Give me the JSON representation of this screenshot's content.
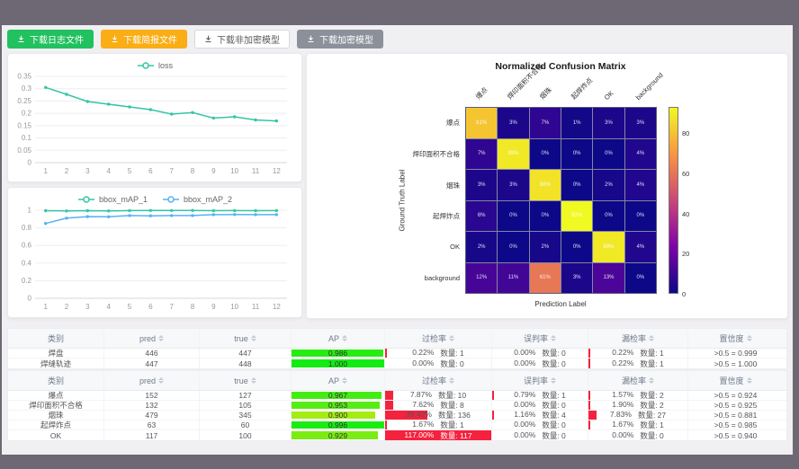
{
  "frame": {
    "chrome_color": "#6e6874",
    "page_bg": "#f0eff2",
    "accent_red": "#f5223d"
  },
  "toolbar": {
    "buttons": [
      {
        "name": "download-log-file-button",
        "label": "下载日志文件",
        "variant": "green",
        "icon": "download-icon"
      },
      {
        "name": "download-report-file-button",
        "label": "下载简报文件",
        "variant": "orange",
        "icon": "download-icon"
      },
      {
        "name": "download-unencrypted-model-button",
        "label": "下载非加密模型",
        "variant": "plain",
        "icon": "download-icon"
      },
      {
        "name": "download-encrypted-model-button",
        "label": "下载加密模型",
        "variant": "gray",
        "icon": "download-icon"
      }
    ]
  },
  "chart_data": [
    {
      "type": "line",
      "title": "",
      "x": [
        "1",
        "2",
        "3",
        "4",
        "5",
        "6",
        "7",
        "8",
        "9",
        "10",
        "11",
        "12"
      ],
      "series": [
        {
          "name": "loss",
          "color": "#34c5a5",
          "values": [
            0.305,
            0.277,
            0.248,
            0.237,
            0.226,
            0.215,
            0.197,
            0.203,
            0.181,
            0.186,
            0.173,
            0.169
          ]
        }
      ],
      "yticks": [
        0,
        0.05,
        0.1,
        0.15,
        0.2,
        0.25,
        0.3,
        0.35
      ],
      "ylim": [
        0,
        0.35
      ],
      "legend_position": "top",
      "grid": true
    },
    {
      "type": "line",
      "title": "",
      "x": [
        "1",
        "2",
        "3",
        "4",
        "5",
        "6",
        "7",
        "8",
        "9",
        "10",
        "11",
        "12"
      ],
      "series": [
        {
          "name": "bbox_mAP_1",
          "color": "#34c5a5",
          "values": [
            0.995,
            0.992,
            0.995,
            0.992,
            0.996,
            0.997,
            0.997,
            0.998,
            0.995,
            0.996,
            0.995,
            0.996
          ]
        },
        {
          "name": "bbox_mAP_2",
          "color": "#5ab1ef",
          "values": [
            0.85,
            0.91,
            0.928,
            0.925,
            0.94,
            0.937,
            0.94,
            0.94,
            0.95,
            0.951,
            0.95,
            0.95
          ]
        }
      ],
      "yticks": [
        0,
        0.2,
        0.4,
        0.6,
        0.8,
        1
      ],
      "ylim": [
        0,
        1
      ],
      "legend_position": "top",
      "grid": true
    },
    {
      "type": "heatmap",
      "title": "Normalized Confusion Matrix",
      "xlabel": "Prediction Label",
      "ylabel": "Ground Truth Label",
      "labels": [
        "爆点",
        "焊印面积不合格",
        "烟珠",
        "起焊炸点",
        "OK",
        "background"
      ],
      "matrix": [
        [
          81,
          3,
          7,
          1,
          3,
          3
        ],
        [
          7,
          89,
          0,
          0,
          0,
          4
        ],
        [
          3,
          3,
          88,
          0,
          2,
          4
        ],
        [
          6,
          0,
          0,
          93,
          0,
          0
        ],
        [
          2,
          0,
          2,
          0,
          89,
          4
        ],
        [
          12,
          11,
          61,
          3,
          13,
          0
        ]
      ],
      "vmax": 93,
      "colorbar_ticks": [
        0,
        20,
        40,
        60,
        80
      ],
      "colormap": "plasma"
    }
  ],
  "table_headers": [
    {
      "label": "类别",
      "sortable": false
    },
    {
      "label": "pred",
      "sortable": true
    },
    {
      "label": "true",
      "sortable": true
    },
    {
      "label": "AP",
      "sortable": true
    },
    {
      "label": "过检率",
      "sortable": true
    },
    {
      "label": "误判率",
      "sortable": true
    },
    {
      "label": "漏检率",
      "sortable": true
    },
    {
      "label": "置信度",
      "sortable": true
    }
  ],
  "tables": [
    {
      "rows": [
        {
          "label": "焊盘",
          "pred": "446",
          "true": "447",
          "ap": "0.986",
          "ap_val": 0.986,
          "over": {
            "pct": "0.22%",
            "count": "数量: 1",
            "bar": 0.22
          },
          "mis": {
            "pct": "0.00%",
            "count": "数量: 0",
            "bar": 0
          },
          "miss": {
            "pct": "0.22%",
            "count": "数量: 1",
            "bar": 0.22
          },
          "conf": ">0.5 = 0.999"
        },
        {
          "label": "焊缝轨迹",
          "pred": "447",
          "true": "448",
          "ap": "1.000",
          "ap_val": 1.0,
          "over": {
            "pct": "0.00%",
            "count": "数量: 0",
            "bar": 0
          },
          "mis": {
            "pct": "0.00%",
            "count": "数量: 0",
            "bar": 0
          },
          "miss": {
            "pct": "0.22%",
            "count": "数量: 1",
            "bar": 0.22
          },
          "conf": ">0.5 = 1.000"
        }
      ]
    },
    {
      "rows": [
        {
          "label": "爆点",
          "pred": "152",
          "true": "127",
          "ap": "0.967",
          "ap_val": 0.967,
          "over": {
            "pct": "7.87%",
            "count": "数量: 10",
            "bar": 7.87
          },
          "mis": {
            "pct": "0.79%",
            "count": "数量: 1",
            "bar": 0.79
          },
          "miss": {
            "pct": "1.57%",
            "count": "数量: 2",
            "bar": 1.57
          },
          "conf": ">0.5 = 0.924"
        },
        {
          "label": "焊印面积不合格",
          "pred": "132",
          "true": "105",
          "ap": "0.953",
          "ap_val": 0.953,
          "over": {
            "pct": "7.62%",
            "count": "数量: 8",
            "bar": 7.62
          },
          "mis": {
            "pct": "0.00%",
            "count": "数量: 0",
            "bar": 0
          },
          "miss": {
            "pct": "1.90%",
            "count": "数量: 2",
            "bar": 1.9
          },
          "conf": ">0.5 = 0.925"
        },
        {
          "label": "烟珠",
          "pred": "479",
          "true": "345",
          "ap": "0.900",
          "ap_val": 0.9,
          "over": {
            "pct": "39.42%",
            "count": "数量: 136",
            "bar": 39.42
          },
          "mis": {
            "pct": "1.16%",
            "count": "数量: 4",
            "bar": 1.16
          },
          "miss": {
            "pct": "7.83%",
            "count": "数量: 27",
            "bar": 7.83
          },
          "conf": ">0.5 = 0.881"
        },
        {
          "label": "起焊炸点",
          "pred": "63",
          "true": "60",
          "ap": "0.996",
          "ap_val": 0.996,
          "over": {
            "pct": "1.67%",
            "count": "数量: 1",
            "bar": 1.67
          },
          "mis": {
            "pct": "0.00%",
            "count": "数量: 0",
            "bar": 0
          },
          "miss": {
            "pct": "1.67%",
            "count": "数量: 1",
            "bar": 1.67
          },
          "conf": ">0.5 = 0.985"
        },
        {
          "label": "OK",
          "pred": "117",
          "true": "100",
          "ap": "0.929",
          "ap_val": 0.929,
          "over": {
            "pct": "117.00%",
            "count": "数量: 117",
            "bar": 117
          },
          "mis": {
            "pct": "0.00%",
            "count": "数量: 0",
            "bar": 0
          },
          "miss": {
            "pct": "0.00%",
            "count": "数量: 0",
            "bar": 0
          },
          "conf": ">0.5 = 0.940"
        }
      ]
    }
  ]
}
